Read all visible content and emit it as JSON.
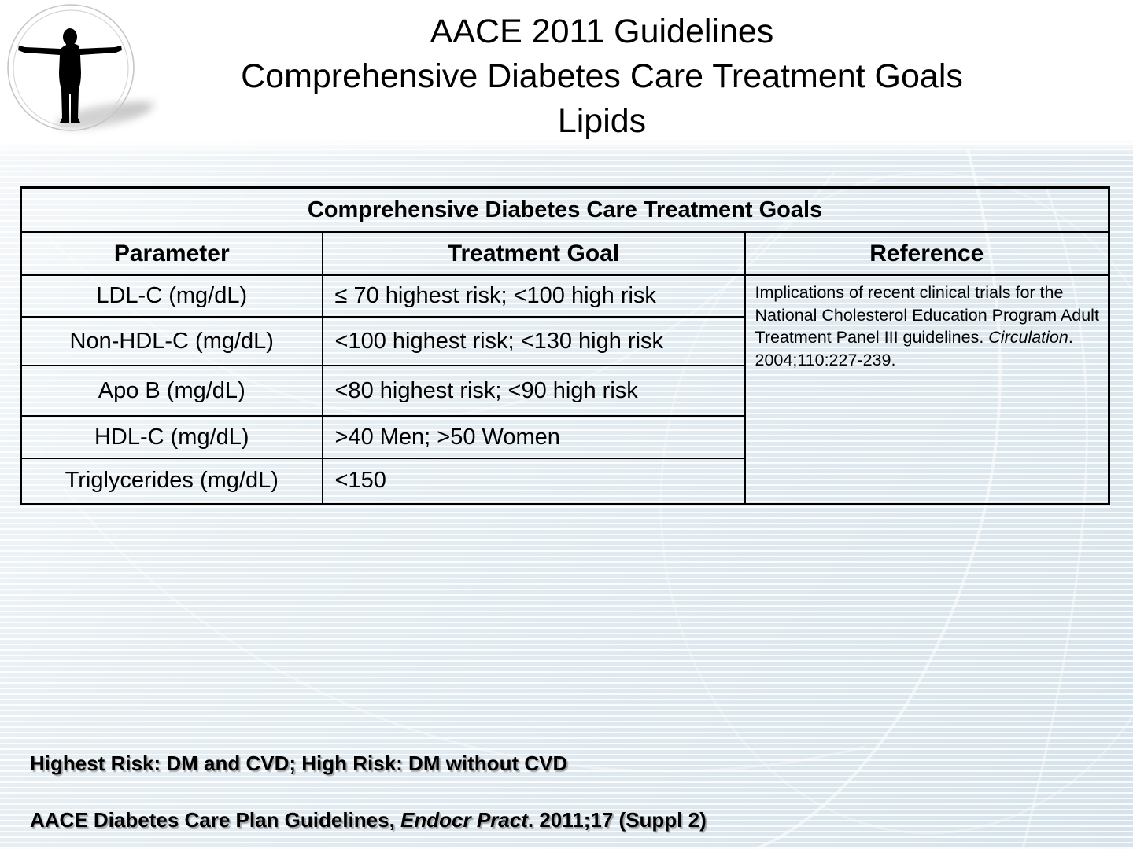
{
  "title": {
    "lines": [
      "AACE 2011 Guidelines",
      "Comprehensive Diabetes Care Treatment Goals",
      "Lipids"
    ]
  },
  "table": {
    "title": "Comprehensive Diabetes Care Treatment Goals",
    "columns": [
      "Parameter",
      "Treatment Goal",
      "Reference"
    ],
    "rows": [
      {
        "parameter": "LDL-C (mg/dL)",
        "goal": "≤ 70 highest risk; <100 high risk"
      },
      {
        "parameter": "Non-HDL-C (mg/dL)",
        "goal": "<100 highest risk; <130 high risk"
      },
      {
        "parameter": "Apo B (mg/dL)",
        "goal": "<80 highest risk; <90 high risk"
      },
      {
        "parameter": "HDL-C (mg/dL)",
        "goal": ">40 Men; >50 Women"
      },
      {
        "parameter": "Triglycerides (mg/dL)",
        "goal": "<150"
      }
    ],
    "reference_parts": [
      {
        "t": "Implications of recent clinical trials for the National Cholesterol Education Program Adult Treatment Panel III guidelines. ",
        "i": false
      },
      {
        "t": "Circulation",
        "i": true
      },
      {
        "t": ". 2004;110:227-239.",
        "i": false
      }
    ]
  },
  "footnotes": {
    "risk_note": "Highest Risk: DM and CVD; High Risk: DM without CVD",
    "citation_parts": [
      {
        "t": "AACE Diabetes Care Plan Guidelines, ",
        "i": false
      },
      {
        "t": "Endocr Pract",
        "i": true
      },
      {
        "t": ". 2011;17 (Suppl 2)",
        "i": false
      }
    ]
  },
  "colors": {
    "background_tint": "#dfe9ef",
    "stripe": "#ffffff",
    "table_border": "#000000",
    "text": "#000000"
  }
}
